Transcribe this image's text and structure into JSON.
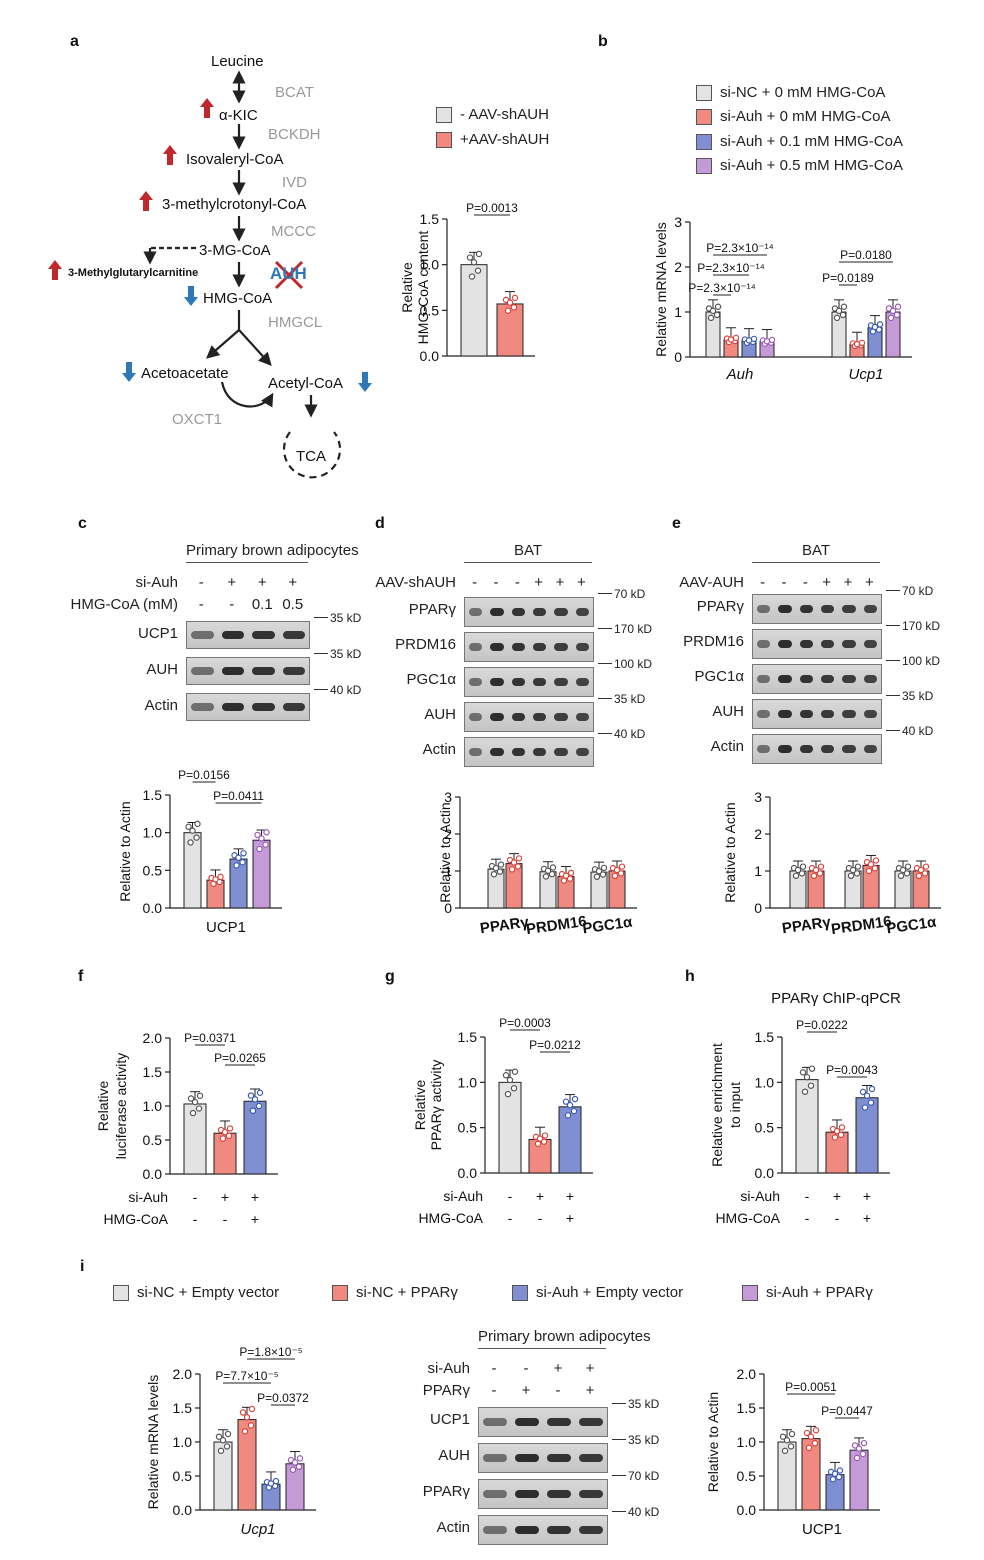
{
  "panels": {
    "a": "a",
    "b": "b",
    "c": "c",
    "d": "d",
    "e": "e",
    "f": "f",
    "g": "g",
    "h": "h",
    "i": "i"
  },
  "pathway": {
    "leucine": "Leucine",
    "akic": "α-KIC",
    "isovaleryl": "Isovaleryl-CoA",
    "mcc": "3-methylcrotonyl-CoA",
    "mg": "3-MG-CoA",
    "mgcarn": "3-Methylglutarylcarnitine",
    "hmg": "HMG-CoA",
    "acetoacetate": "Acetoacetate",
    "acetyl": "Acetyl-CoA",
    "tca": "TCA",
    "enzymes": {
      "bcat": "BCAT",
      "bckdh": "BCKDH",
      "ivd": "IVD",
      "mccc": "MCCC",
      "auh": "AUH",
      "hmgcl": "HMGCL",
      "oxct1": "OXCT1"
    }
  },
  "legend_a": [
    "- AAV-shAUH",
    "+AAV-shAUH"
  ],
  "legend_b": [
    "si-NC + 0 mM HMG-CoA",
    "si-Auh + 0 mM HMG-CoA",
    "si-Auh + 0.1 mM HMG-CoA",
    "si-Auh + 0.5 mM HMG-CoA"
  ],
  "legend_i": [
    "si-NC + Empty vector",
    "si-NC + PPARγ",
    "si-Auh + Empty vector",
    "si-Auh + PPARγ"
  ],
  "colors": {
    "grey": "#e3e3e3",
    "red": "#f08a80",
    "blue": "#7f8fd1",
    "purple": "#c49ad8",
    "up": "#c0282d",
    "down": "#2d79b8",
    "dgrey": "#555555",
    "dred": "#d9443c",
    "dblue": "#3b5bb5",
    "dpurple": "#9a5ab8"
  },
  "chart_data": [
    {
      "id": "a",
      "type": "bar",
      "ylabel": "Relative HMG-CoA content",
      "ylim": [
        0,
        1.5
      ],
      "yticks": [
        "0.0",
        "0.5",
        "1.0",
        "1.5"
      ],
      "series": [
        {
          "name": "- AAV-shAUH",
          "values": [
            1.0
          ]
        },
        {
          "name": "+AAV-shAUH",
          "values": [
            0.57
          ]
        }
      ],
      "annotations": [
        "P=0.0013"
      ]
    },
    {
      "id": "b",
      "type": "bar",
      "ylabel": "Relative mRNA levels",
      "ylim": [
        0,
        3
      ],
      "yticks": [
        "0",
        "1",
        "2",
        "3"
      ],
      "categories": [
        "Auh",
        "Ucp1"
      ],
      "series": [
        {
          "name": "si-NC + 0 mM HMG-CoA",
          "values": [
            1.0,
            1.0
          ]
        },
        {
          "name": "si-Auh + 0 mM HMG-CoA",
          "values": [
            0.38,
            0.28
          ]
        },
        {
          "name": "si-Auh + 0.1 mM HMG-CoA",
          "values": [
            0.36,
            0.65
          ]
        },
        {
          "name": "si-Auh + 0.5 mM HMG-CoA",
          "values": [
            0.34,
            1.0
          ]
        }
      ],
      "annotations": [
        "P=2.3×10⁻¹⁴",
        "P=2.3×10⁻¹⁴",
        "P=2.3×10⁻¹⁴",
        "P=0.0189",
        "P=0.0180"
      ]
    },
    {
      "id": "c",
      "type": "bar",
      "ylabel": "Relative to Actin",
      "xlabel": "UCP1",
      "ylim": [
        0,
        1.5
      ],
      "yticks": [
        "0.0",
        "0.5",
        "1.0",
        "1.5"
      ],
      "values": [
        1.0,
        0.37,
        0.65,
        0.9
      ],
      "annotations": [
        "P=0.0156",
        "P=0.0411"
      ]
    },
    {
      "id": "d",
      "type": "bar",
      "ylabel": "Relative to Actin",
      "ylim": [
        0,
        3
      ],
      "yticks": [
        "0",
        "1",
        "2",
        "3"
      ],
      "categories": [
        "PPARγ",
        "PRDM16",
        "PGC1α"
      ],
      "series": [
        {
          "name": "- AAV-shAUH",
          "values": [
            1.05,
            0.98,
            0.97
          ]
        },
        {
          "name": "+AAV-shAUH",
          "values": [
            1.2,
            0.85,
            1.0
          ]
        }
      ]
    },
    {
      "id": "e",
      "type": "bar",
      "ylabel": "Relative to Actin",
      "ylim": [
        0,
        3
      ],
      "yticks": [
        "0",
        "1",
        "2",
        "3"
      ],
      "categories": [
        "PPARγ",
        "PRDM16",
        "PGC1α"
      ],
      "series": [
        {
          "name": "- AAV-AUH",
          "values": [
            1.0,
            1.0,
            1.0
          ]
        },
        {
          "name": "+AAV-AUH",
          "values": [
            1.0,
            1.15,
            1.0
          ]
        }
      ]
    },
    {
      "id": "f",
      "type": "bar",
      "ylabel": "Relative luciferase activity",
      "ylim": [
        0,
        2
      ],
      "yticks": [
        "0.0",
        "0.5",
        "1.0",
        "1.5",
        "2.0"
      ],
      "values": [
        1.03,
        0.6,
        1.07
      ],
      "annotations": [
        "P=0.0371",
        "P=0.0265"
      ]
    },
    {
      "id": "g",
      "type": "bar",
      "ylabel": "Relative PPARγ activity",
      "ylim": [
        0,
        1.5
      ],
      "yticks": [
        "0.0",
        "0.5",
        "1.0",
        "1.5"
      ],
      "values": [
        1.0,
        0.37,
        0.73
      ],
      "annotations": [
        "P=0.0003",
        "P=0.0212"
      ]
    },
    {
      "id": "h",
      "type": "bar",
      "title": "PPARγ ChIP-qPCR",
      "ylabel": "Relative enrichment to input",
      "ylim": [
        0,
        1.5
      ],
      "yticks": [
        "0.0",
        "0.5",
        "1.0",
        "1.5"
      ],
      "values": [
        1.03,
        0.45,
        0.83
      ],
      "annotations": [
        "P=0.0222",
        "P=0.0043"
      ]
    },
    {
      "id": "i1",
      "type": "bar",
      "ylabel": "Relative mRNA levels",
      "xlabel": "Ucp1",
      "ylim": [
        0,
        2
      ],
      "yticks": [
        "0.0",
        "0.5",
        "1.0",
        "1.5",
        "2.0"
      ],
      "values": [
        1.0,
        1.33,
        0.38,
        0.68
      ],
      "annotations": [
        "P=1.8×10⁻⁵",
        "P=7.7×10⁻⁵",
        "P=0.0372"
      ]
    },
    {
      "id": "i2",
      "type": "bar",
      "ylabel": "Relative to Actin",
      "xlabel": "UCP1",
      "ylim": [
        0,
        2
      ],
      "yticks": [
        "0.0",
        "0.5",
        "1.0",
        "1.5",
        "2.0"
      ],
      "values": [
        1.0,
        1.05,
        0.52,
        0.88
      ],
      "annotations": [
        "P=0.0051",
        "P=0.0447"
      ]
    }
  ],
  "blots": {
    "c": {
      "title": "Primary brown adipocytes",
      "rows": [
        {
          "k": "si-Auh",
          "v": [
            "-",
            "+",
            "+",
            "+"
          ]
        },
        {
          "k": "HMG-CoA (mM)",
          "v": [
            "-",
            "-",
            "0.1",
            "0.5"
          ]
        }
      ],
      "bands": [
        "UCP1",
        "AUH",
        "Actin"
      ],
      "sizes": [
        "35 kD",
        "35 kD",
        "40 kD"
      ]
    },
    "d": {
      "title": "BAT",
      "rows": [
        {
          "k": "AAV-shAUH",
          "v": [
            "-",
            "-",
            "-",
            "+",
            "+",
            "+"
          ]
        }
      ],
      "bands": [
        "PPARγ",
        "PRDM16",
        "PGC1α",
        "AUH",
        "Actin"
      ],
      "sizes": [
        "70 kD",
        "170 kD",
        "100 kD",
        "35 kD",
        "40 kD"
      ]
    },
    "e": {
      "title": "BAT",
      "rows": [
        {
          "k": "AAV-AUH",
          "v": [
            "-",
            "-",
            "-",
            "+",
            "+",
            "+"
          ]
        }
      ],
      "bands": [
        "PPARγ",
        "PRDM16",
        "PGC1α",
        "AUH",
        "Actin"
      ],
      "sizes": [
        "70 kD",
        "170 kD",
        "100 kD",
        "35 kD",
        "40 kD"
      ]
    },
    "i": {
      "title": "Primary brown adipocytes",
      "rows": [
        {
          "k": "si-Auh",
          "v": [
            "-",
            "-",
            "+",
            "+"
          ]
        },
        {
          "k": "PPARγ",
          "v": [
            "-",
            "+",
            "-",
            "+"
          ]
        }
      ],
      "bands": [
        "UCP1",
        "AUH",
        "PPARγ",
        "Actin"
      ],
      "sizes": [
        "35 kD",
        "35 kD",
        "70 kD",
        "40 kD"
      ]
    }
  },
  "condition_rows": {
    "f": [
      {
        "k": "si-Auh",
        "v": [
          "-",
          "+",
          "+"
        ]
      },
      {
        "k": "HMG-CoA",
        "v": [
          "-",
          "-",
          "+"
        ]
      }
    ],
    "g": [
      {
        "k": "si-Auh",
        "v": [
          "-",
          "+",
          "+"
        ]
      },
      {
        "k": "HMG-CoA",
        "v": [
          "-",
          "-",
          "+"
        ]
      }
    ],
    "h": [
      {
        "k": "si-Auh",
        "v": [
          "-",
          "+",
          "+"
        ]
      },
      {
        "k": "HMG-CoA",
        "v": [
          "-",
          "-",
          "+"
        ]
      }
    ]
  }
}
